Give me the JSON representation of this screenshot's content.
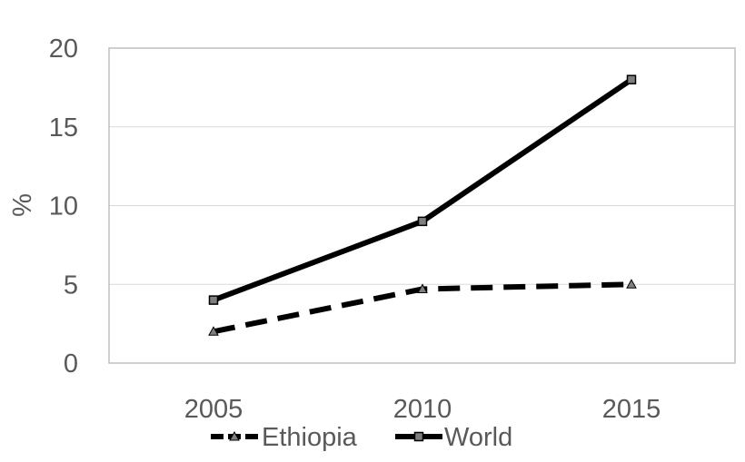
{
  "chart_data": {
    "type": "line",
    "title": "",
    "xlabel": "",
    "ylabel": "%",
    "x": [
      "2005",
      "2010",
      "2015"
    ],
    "ylim": [
      0,
      20
    ],
    "yticks": [
      "0",
      "5",
      "10",
      "15",
      "20"
    ],
    "grid": true,
    "legend_position": "bottom",
    "series": [
      {
        "name": "Ethiopia",
        "values": [
          2,
          4.7,
          5
        ],
        "marker": "triangle",
        "line_style": "dashed",
        "color": "#000000"
      },
      {
        "name": "World",
        "values": [
          4,
          9,
          18
        ],
        "marker": "square",
        "line_style": "solid",
        "color": "#000000"
      }
    ]
  }
}
